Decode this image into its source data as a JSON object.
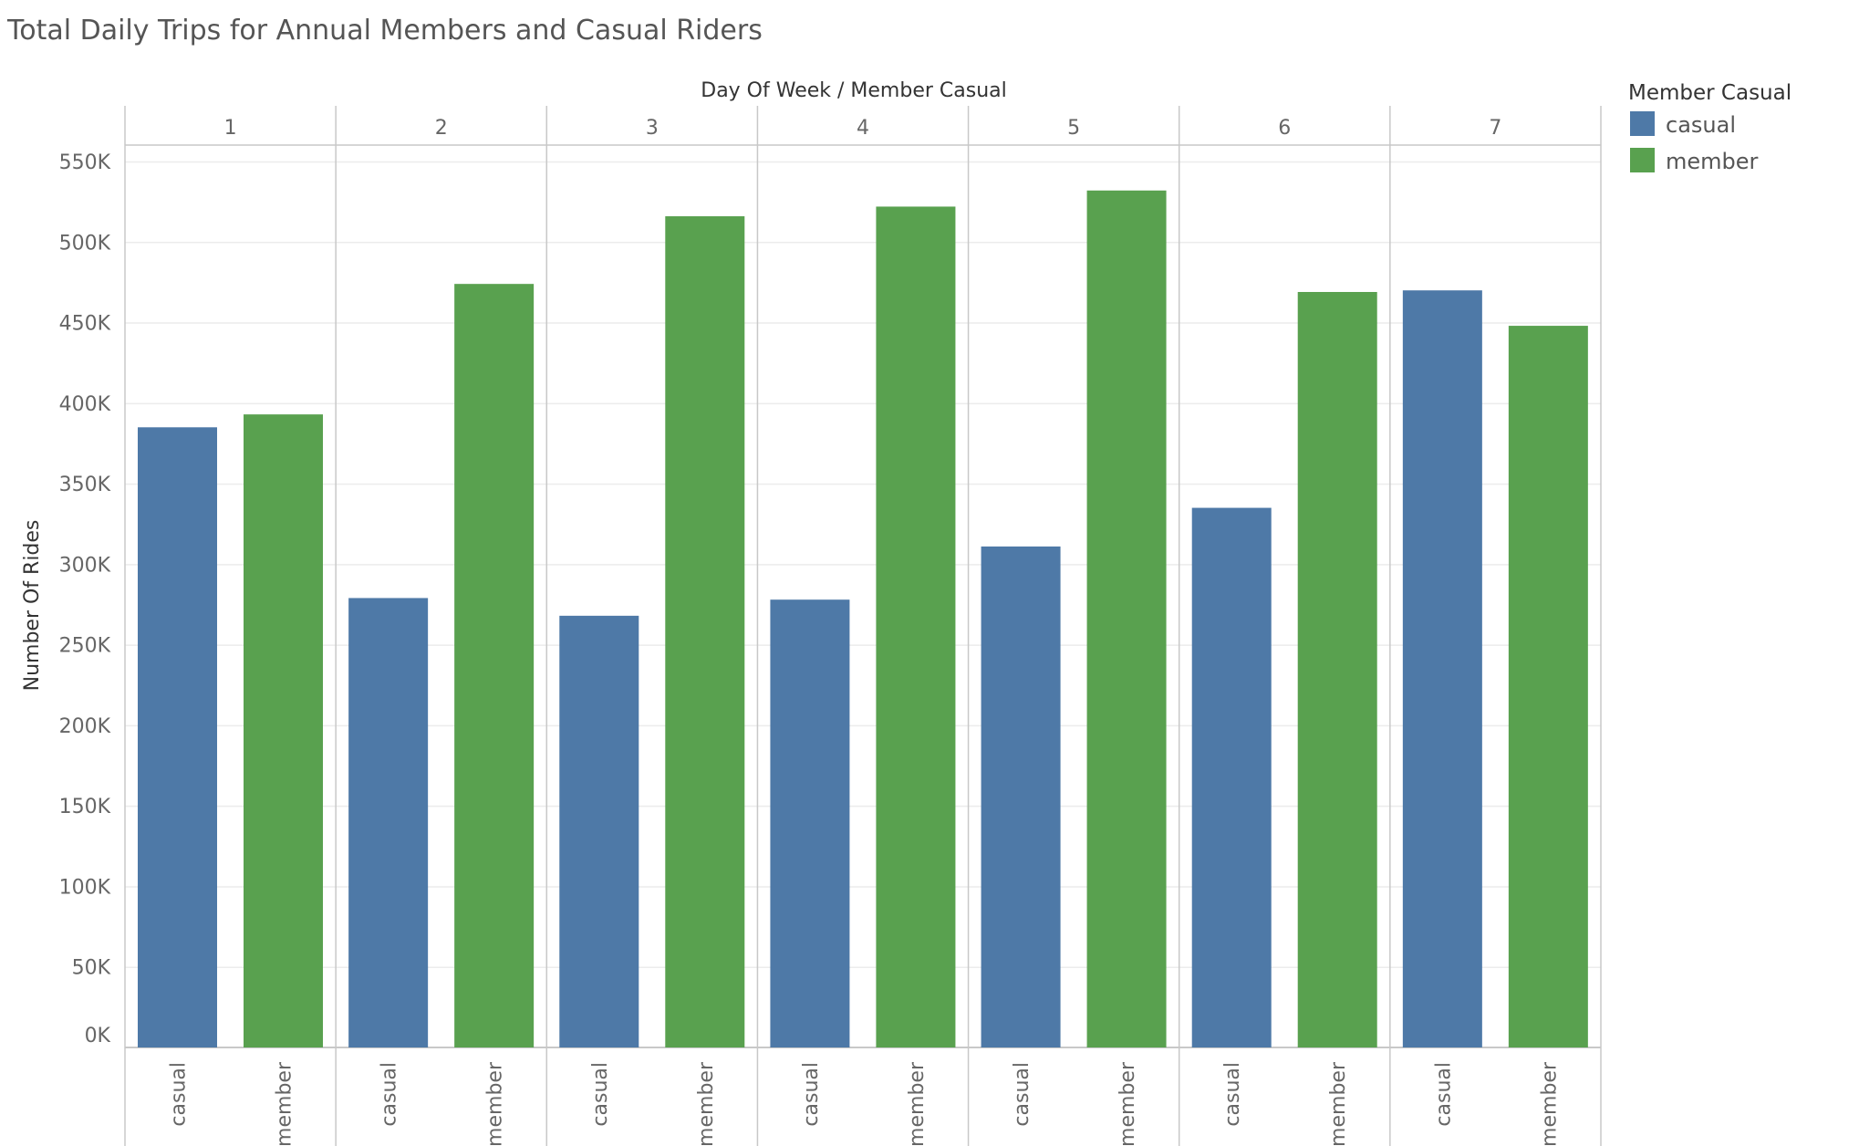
{
  "chart_data": {
    "type": "bar",
    "title": "Total Daily Trips for Annual Members and Casual Riders",
    "column_header_title": "Day Of Week  /  Member Casual",
    "ylabel": "Number Of Rides",
    "ylim": [
      0,
      550000
    ],
    "yticks": [
      {
        "value": 0,
        "label": "0K"
      },
      {
        "value": 50000,
        "label": "50K"
      },
      {
        "value": 100000,
        "label": "100K"
      },
      {
        "value": 150000,
        "label": "150K"
      },
      {
        "value": 200000,
        "label": "200K"
      },
      {
        "value": 250000,
        "label": "250K"
      },
      {
        "value": 300000,
        "label": "300K"
      },
      {
        "value": 350000,
        "label": "350K"
      },
      {
        "value": 400000,
        "label": "400K"
      },
      {
        "value": 450000,
        "label": "450K"
      },
      {
        "value": 500000,
        "label": "500K"
      },
      {
        "value": 550000,
        "label": "550K"
      }
    ],
    "categories": [
      "1",
      "2",
      "3",
      "4",
      "5",
      "6",
      "7"
    ],
    "series": [
      {
        "name": "casual",
        "color": "#4e79a7",
        "values": [
          385000,
          279000,
          268000,
          278000,
          311000,
          335000,
          470000
        ]
      },
      {
        "name": "member",
        "color": "#59a14f",
        "values": [
          393000,
          474000,
          516000,
          522000,
          532000,
          469000,
          448000
        ]
      }
    ],
    "legend": {
      "title": "Member Casual",
      "position": "top-right",
      "items": [
        "casual",
        "member"
      ]
    },
    "grid": true
  }
}
